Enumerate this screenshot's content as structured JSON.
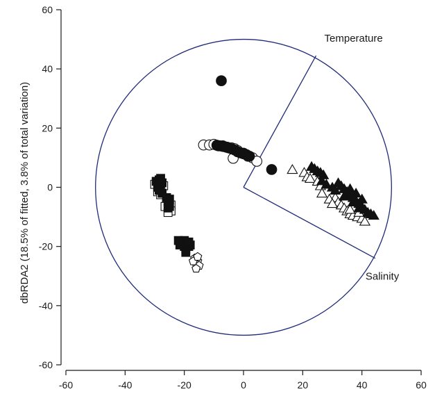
{
  "chart_data": {
    "type": "scatter",
    "title": "",
    "xlabel": "",
    "ylabel": "dbRDA2 (18.5% of fitted, 3.8% of total variation)",
    "xlim": [
      -60,
      60
    ],
    "ylim": [
      -60,
      60
    ],
    "xticks": [
      "-60",
      "-40",
      "-20",
      "0",
      "20",
      "40",
      "60"
    ],
    "yticks": [
      "60",
      "40",
      "20",
      "0",
      "-20",
      "-40",
      "-60"
    ],
    "grid": false,
    "legend": "none",
    "circle": {
      "center": [
        0,
        0
      ],
      "radius": 50,
      "color": "#1f2a7a"
    },
    "vectors": [
      {
        "label": "Temperature",
        "x": 24.5,
        "y": 44.5
      },
      {
        "label": "Salinity",
        "x": 44.5,
        "y": -24
      }
    ],
    "series": [
      {
        "marker": "filled-circle",
        "color": "#111111",
        "points": [
          [
            -7.5,
            36
          ],
          [
            9.5,
            6
          ],
          [
            -9,
            14.2
          ],
          [
            -8,
            14
          ],
          [
            -7,
            14
          ],
          [
            -6,
            13.6
          ],
          [
            -5,
            13.3
          ],
          [
            -4,
            13
          ],
          [
            -3,
            12.6
          ],
          [
            -2,
            12
          ],
          [
            -1,
            11.6
          ],
          [
            0,
            11.3
          ],
          [
            1,
            11
          ],
          [
            2,
            10.5
          ],
          [
            -5.5,
            13.5
          ]
        ]
      },
      {
        "marker": "open-circle",
        "color": "#111111",
        "points": [
          [
            -13.5,
            14.3
          ],
          [
            -11.5,
            14.3
          ],
          [
            -10,
            14.5
          ],
          [
            -8.5,
            14
          ],
          [
            -7,
            13.8
          ],
          [
            -5.5,
            13.5
          ],
          [
            -4,
            13.3
          ],
          [
            -3,
            13
          ],
          [
            -2,
            12.4
          ],
          [
            0,
            11.5
          ],
          [
            1.5,
            10.5
          ],
          [
            3,
            10
          ],
          [
            4.5,
            8.8
          ],
          [
            -3.5,
            9.8
          ]
        ]
      },
      {
        "marker": "filled-triangle",
        "color": "#111111",
        "points": [
          [
            23,
            7
          ],
          [
            24,
            6.3
          ],
          [
            25,
            5.5
          ],
          [
            26,
            5
          ],
          [
            27,
            4.2
          ],
          [
            26.5,
            2.2
          ],
          [
            32,
            1.5
          ],
          [
            33,
            0.5
          ],
          [
            34,
            -0.5
          ],
          [
            35,
            -1.5
          ],
          [
            36,
            -2.5
          ],
          [
            37,
            -3.5
          ],
          [
            38,
            -4.5
          ],
          [
            39,
            -5.5
          ],
          [
            40,
            -6.5
          ],
          [
            41,
            -7.5
          ],
          [
            42,
            -8.5
          ],
          [
            43,
            -9
          ],
          [
            44,
            -9.5
          ],
          [
            36,
            -0.5
          ],
          [
            38,
            -2
          ],
          [
            40,
            -4
          ],
          [
            30,
            0
          ],
          [
            28,
            1
          ],
          [
            31,
            -1
          ],
          [
            34,
            -3
          ],
          [
            37,
            -5
          ],
          [
            39,
            -7
          ]
        ]
      },
      {
        "marker": "open-triangle",
        "color": "#111111",
        "points": [
          [
            16.5,
            6
          ],
          [
            20.5,
            5
          ],
          [
            21.5,
            3.5
          ],
          [
            22.5,
            3
          ],
          [
            25,
            2
          ],
          [
            26,
            0.5
          ],
          [
            26.5,
            -2
          ],
          [
            31,
            -3.5
          ],
          [
            32,
            -5
          ],
          [
            33,
            -6
          ],
          [
            34,
            -7
          ],
          [
            35,
            -8
          ],
          [
            36,
            -9
          ],
          [
            37,
            -9.5
          ],
          [
            38.5,
            -10
          ],
          [
            40,
            -10.5
          ],
          [
            41,
            -11.5
          ],
          [
            29,
            -4
          ],
          [
            30,
            -5.5
          ],
          [
            36,
            -7.5
          ],
          [
            39,
            -8.5
          ]
        ]
      },
      {
        "marker": "filled-square",
        "color": "#111111",
        "points": [
          [
            -29.5,
            2
          ],
          [
            -29,
            0
          ],
          [
            -28.5,
            2.5
          ],
          [
            -28.5,
            -1
          ],
          [
            -28,
            1
          ],
          [
            -28,
            3
          ],
          [
            -27.5,
            -2
          ],
          [
            -27.5,
            1.5
          ],
          [
            -26,
            -3.5
          ],
          [
            -25.5,
            -5
          ],
          [
            -25.5,
            -7
          ],
          [
            -25,
            -4
          ],
          [
            -25,
            -6.5
          ],
          [
            -21,
            -18.5
          ],
          [
            -20.5,
            -19
          ],
          [
            -20,
            -20
          ],
          [
            -19.5,
            -21
          ],
          [
            -19,
            -19
          ],
          [
            -18.5,
            -20
          ],
          [
            -18,
            -19.5
          ],
          [
            -20,
            -18
          ],
          [
            -21.5,
            -19.5
          ],
          [
            -19.5,
            -22
          ],
          [
            -22,
            -18
          ],
          [
            -18.5,
            -18.5
          ]
        ]
      },
      {
        "marker": "open-square",
        "color": "#111111",
        "points": [
          [
            -30,
            1
          ],
          [
            -29,
            -1.5
          ],
          [
            -28,
            -2.5
          ],
          [
            -27,
            0.5
          ],
          [
            -26,
            -5
          ],
          [
            -25,
            -7.5
          ],
          [
            -24.5,
            -6
          ],
          [
            -24.5,
            -8
          ],
          [
            -26.5,
            -6.5
          ],
          [
            -25.5,
            -8.5
          ]
        ]
      },
      {
        "marker": "open-pentagon",
        "color": "#111111",
        "points": [
          [
            -16.5,
            -24
          ],
          [
            -15.5,
            -25
          ],
          [
            -16,
            -26
          ],
          [
            -15,
            -26.5
          ],
          [
            -17,
            -25
          ],
          [
            -16,
            -27.5
          ],
          [
            -15.5,
            -23.5
          ]
        ]
      }
    ]
  }
}
